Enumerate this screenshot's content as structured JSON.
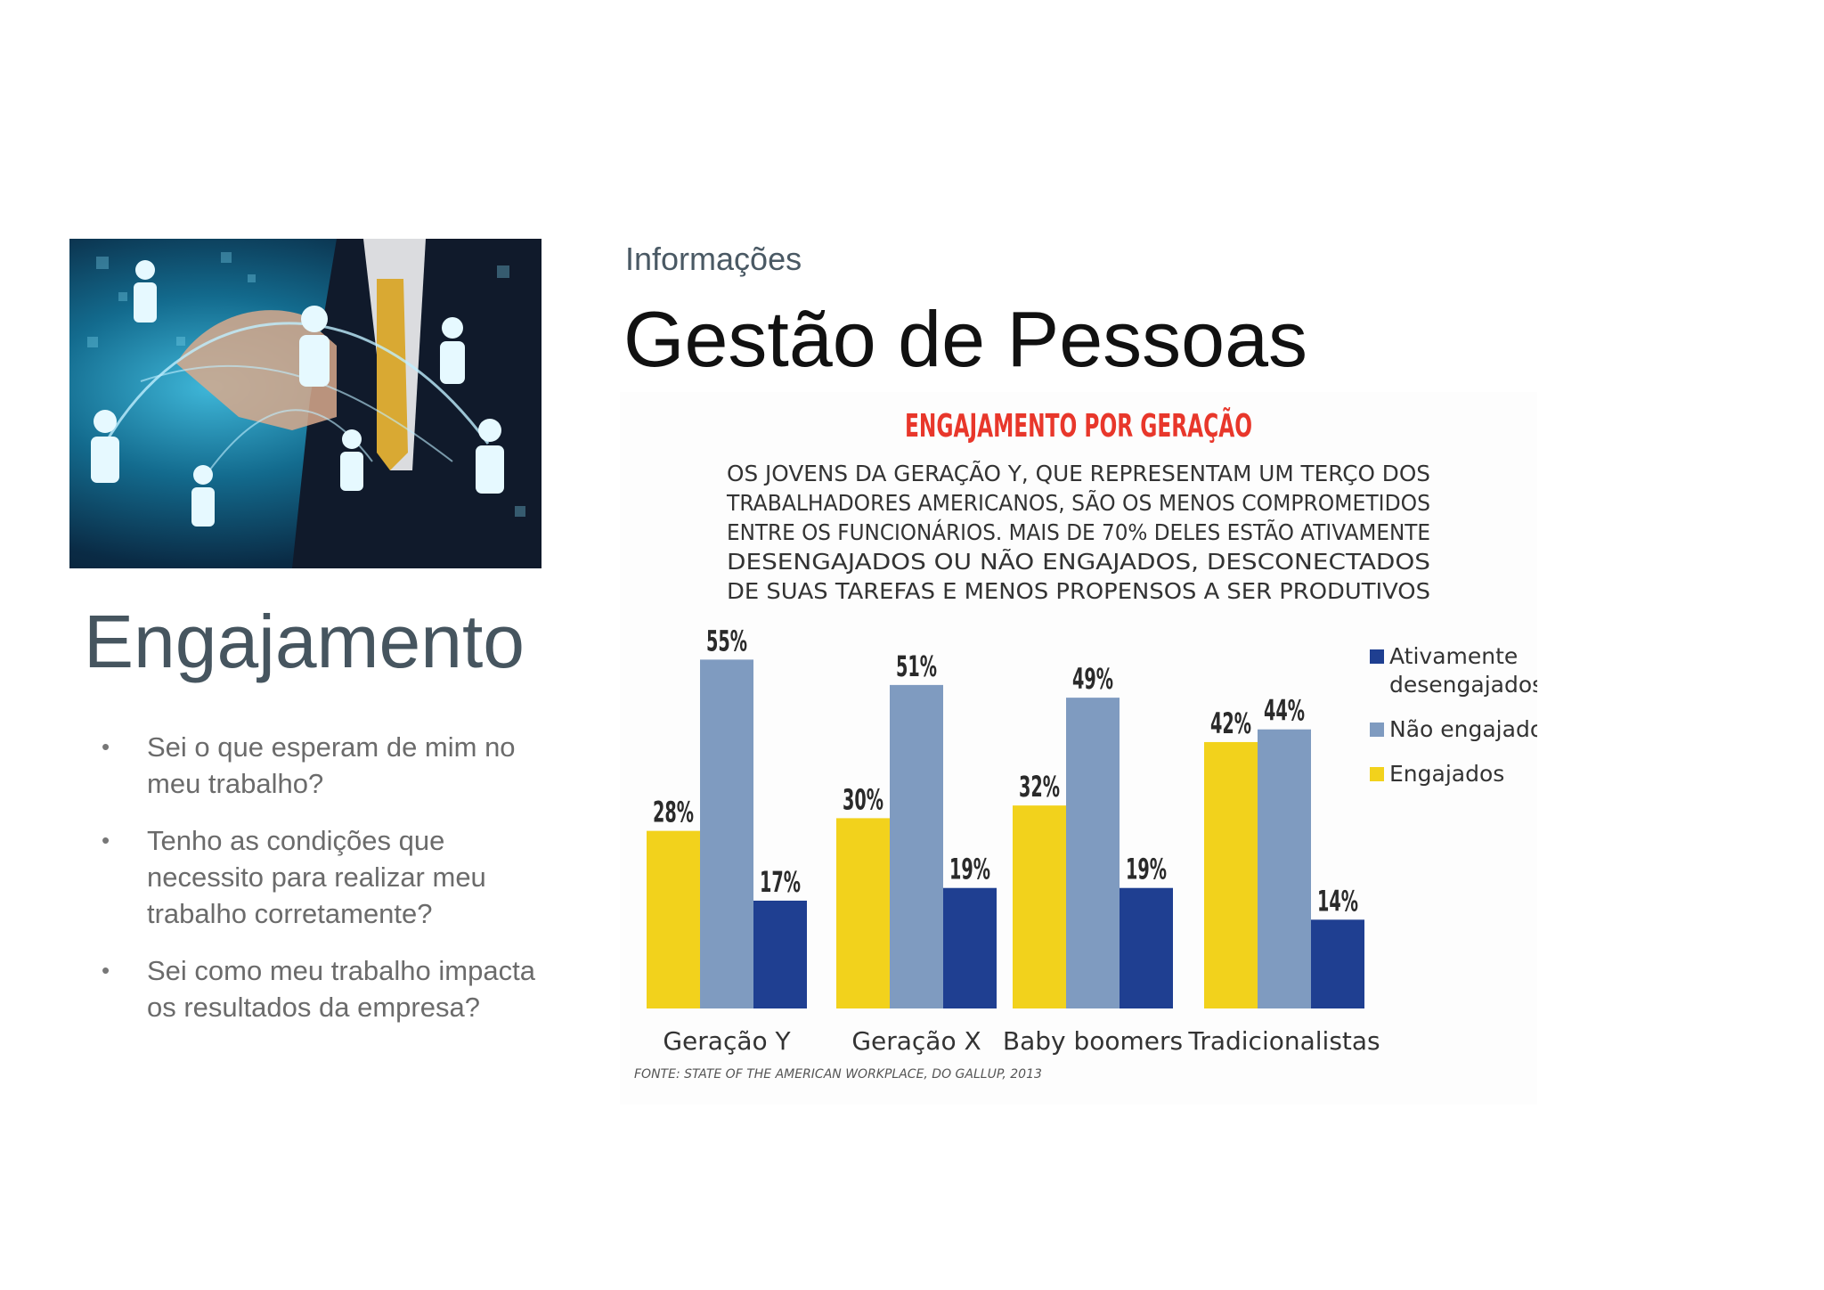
{
  "slide": {
    "kicker": "Informações",
    "title": "Gestão de Pessoas",
    "heading": "Engajamento",
    "bullets": [
      "Sei o que esperam de mim no meu trabalho?",
      "Tenho as condições que necessito para realizar meu trabalho corretamente?",
      "Sei como meu trabalho impacta os resultados da empresa?"
    ]
  },
  "chart_data": {
    "type": "bar",
    "title": "ENGAJAMENTO POR GERAÇÃO",
    "subtitle_lines": [
      "OS JOVENS DA GERAÇÃO Y, QUE REPRESENTAM UM TERÇO DOS",
      "TRABALHADORES AMERICANOS, SÃO OS MENOS COMPROMETIDOS",
      "ENTRE OS FUNCIONÁRIOS. MAIS DE 70% DELES ESTÃO ATIVAMENTE",
      "DESENGAJADOS OU NÃO ENGAJADOS, DESCONECTADOS",
      "DE SUAS TAREFAS E MENOS PROPENSOS A SER PRODUTIVOS"
    ],
    "categories": [
      "Geração Y",
      "Geração X",
      "Baby boomers",
      "Tradicionalistas"
    ],
    "series": [
      {
        "name": "Engajados",
        "color": "#f2d21c",
        "values": [
          28,
          30,
          32,
          42
        ]
      },
      {
        "name": "Não engajados",
        "color": "#7f9bc0",
        "values": [
          55,
          51,
          49,
          44
        ]
      },
      {
        "name": "Ativamente desengajados",
        "color": "#1f3f91",
        "values": [
          17,
          19,
          19,
          14
        ]
      }
    ],
    "legend": {
      "placement": "right",
      "entries": [
        {
          "lines": [
            "Ativamente",
            "desengajados"
          ],
          "color": "#1f3f91"
        },
        {
          "lines": [
            "Não engajados"
          ],
          "color": "#7f9bc0"
        },
        {
          "lines": [
            "Engajados"
          ],
          "color": "#f2d21c"
        }
      ]
    },
    "value_suffix": "%",
    "ylim": [
      0,
      60
    ],
    "grid": false,
    "source": "FONTE: STATE OF THE AMERICAN WORKPLACE, DO GALLUP, 2013",
    "title_color": "#e8372b"
  }
}
